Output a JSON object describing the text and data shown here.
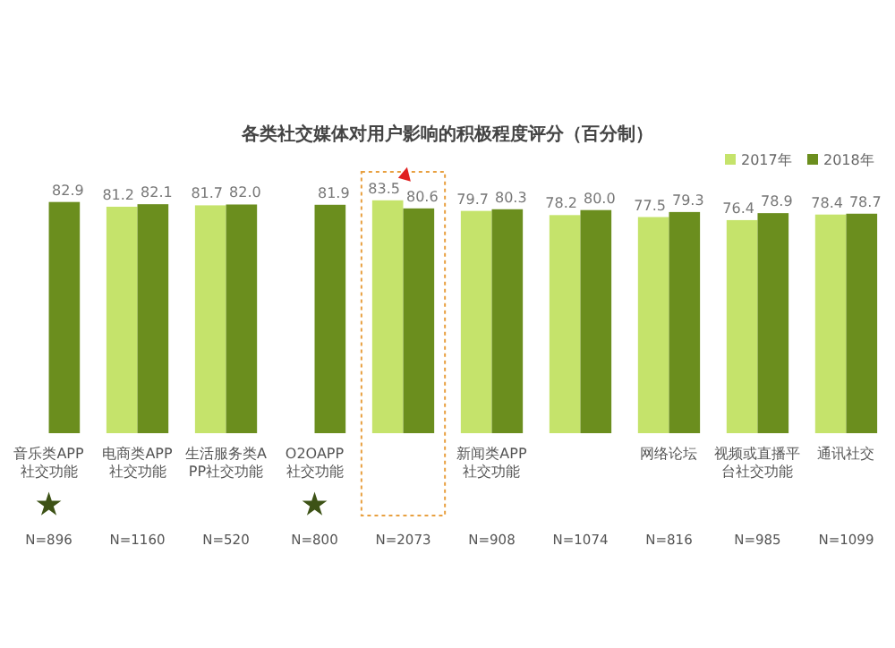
{
  "chart_data": {
    "type": "bar",
    "title": "各类社交媒体对用户影响的积极程度评分（百分制）",
    "categories": [
      "音乐类APP社交功能",
      "电商类APP社交功能",
      "生活服务类APP社交功能",
      "O2OAPP社交功能",
      null,
      "新闻类APP社交功能",
      null,
      "网络论坛",
      "视频或直播平台社交功能",
      "通讯社交"
    ],
    "series": [
      {
        "name": "2017年",
        "color": "#c5e36b",
        "values": [
          null,
          81.2,
          81.7,
          null,
          83.5,
          79.7,
          78.2,
          77.5,
          76.4,
          78.4
        ],
        "value_labels": [
          null,
          "81.2",
          "81.7",
          null,
          "83.5",
          "79.7",
          "78.2",
          "77.5",
          "76.4",
          "78.4"
        ]
      },
      {
        "name": "2018年",
        "color": "#6b8e1e",
        "values": [
          82.9,
          82.1,
          82.0,
          81.9,
          80.6,
          80.3,
          80.0,
          79.3,
          78.9,
          78.7
        ],
        "value_labels": [
          "82.9",
          "82.1",
          "82.0",
          "81.9",
          "80.6",
          "80.3",
          "80.0",
          "79.3",
          "78.9",
          "78.7"
        ]
      }
    ],
    "tick_labels": "x",
    "legend": "top right",
    "annotations": [
      "N=896",
      "N=1160",
      "N=520",
      "N=800",
      "N=2073",
      "N=908",
      "N=1074",
      "N=816",
      "N=985",
      "N=1099"
    ]
  }
}
